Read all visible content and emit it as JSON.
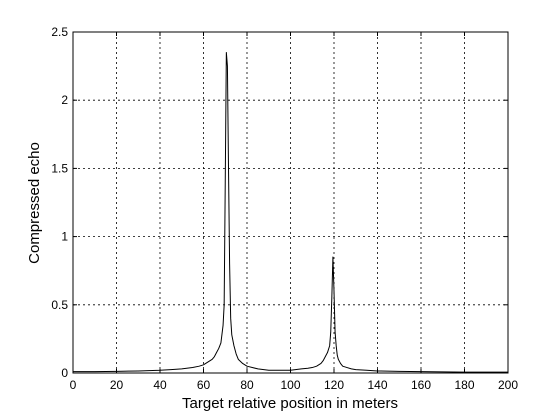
{
  "chart_data": {
    "type": "line",
    "title": "",
    "xlabel": "Target relative position in meters",
    "ylabel": "Compressed echo",
    "xlim": [
      0,
      200
    ],
    "ylim": [
      0,
      2.5
    ],
    "x_ticks": [
      "0",
      "20",
      "40",
      "60",
      "80",
      "100",
      "120",
      "140",
      "160",
      "180",
      "200"
    ],
    "y_ticks": [
      "0",
      "0.5",
      "1",
      "1.5",
      "2",
      "2.5"
    ],
    "grid": true,
    "grid_style": "dotted",
    "line_color": "#000000",
    "series": [
      {
        "x": [
          0,
          10,
          20,
          30,
          40,
          45,
          50,
          55,
          58,
          60,
          62,
          64,
          65,
          66,
          67,
          68,
          69,
          69.5,
          70,
          70.5,
          71,
          71.5,
          72,
          72.5,
          73,
          74,
          75,
          76,
          78,
          80,
          85,
          90,
          95,
          100,
          105,
          108,
          110,
          112,
          114,
          115,
          116,
          117,
          118,
          118.5,
          119,
          119.5,
          120,
          120.5,
          121,
          121.5,
          122,
          123,
          124,
          126,
          128,
          130,
          135,
          140,
          150,
          160,
          170,
          180,
          190,
          200
        ],
        "y": [
          0.01,
          0.01,
          0.012,
          0.015,
          0.02,
          0.025,
          0.03,
          0.04,
          0.05,
          0.06,
          0.08,
          0.1,
          0.12,
          0.15,
          0.18,
          0.22,
          0.35,
          0.5,
          1.4,
          2.35,
          2.25,
          1.5,
          0.8,
          0.4,
          0.28,
          0.2,
          0.14,
          0.1,
          0.07,
          0.05,
          0.03,
          0.02,
          0.02,
          0.02,
          0.03,
          0.035,
          0.04,
          0.05,
          0.07,
          0.09,
          0.12,
          0.15,
          0.2,
          0.3,
          0.55,
          0.85,
          0.6,
          0.3,
          0.2,
          0.13,
          0.1,
          0.07,
          0.05,
          0.04,
          0.03,
          0.025,
          0.02,
          0.015,
          0.012,
          0.01,
          0.008,
          0.006,
          0.006,
          0.006
        ]
      }
    ]
  }
}
